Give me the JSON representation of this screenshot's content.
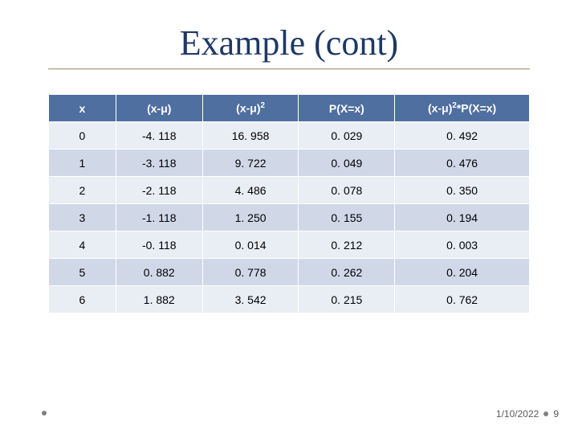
{
  "title": "Example (cont)",
  "table": {
    "type": "table",
    "header_bg": "#4f6fa0",
    "header_fg": "#ffffff",
    "row_odd_bg": "#e9edf4",
    "row_even_bg": "#d0d8e8",
    "border_color": "#ffffff",
    "font_size": 14,
    "columns": [
      {
        "label": "x",
        "width": "14%"
      },
      {
        "label": "(x-μ)",
        "width": "18%"
      },
      {
        "label": "(x-μ)²",
        "width": "20%",
        "html": true
      },
      {
        "label": "P(X=x)",
        "width": "20%"
      },
      {
        "label": "(x-μ)²*P(X=x)",
        "width": "28%",
        "html": true
      }
    ],
    "rows": [
      [
        "0",
        "-4. 118",
        "16. 958",
        "0. 029",
        "0. 492"
      ],
      [
        "1",
        "-3. 118",
        "9. 722",
        "0. 049",
        "0. 476"
      ],
      [
        "2",
        "-2. 118",
        "4. 486",
        "0. 078",
        "0. 350"
      ],
      [
        "3",
        "-1. 118",
        "1. 250",
        "0. 155",
        "0. 194"
      ],
      [
        "4",
        "-0. 118",
        "0. 014",
        "0. 212",
        "0. 003"
      ],
      [
        "5",
        "0. 882",
        "0. 778",
        "0. 262",
        "0. 204"
      ],
      [
        "6",
        "1. 882",
        "3. 542",
        "0. 215",
        "0. 762"
      ]
    ]
  },
  "footer": {
    "date": "1/10/2022",
    "page": "9",
    "text_color": "#5a5a5a",
    "font_size": 12,
    "bullet_color": "#808080"
  },
  "background_color": "#ffffff",
  "title_color": "#1f3864",
  "title_fontsize": 44,
  "underline_color": "#b0a78a"
}
